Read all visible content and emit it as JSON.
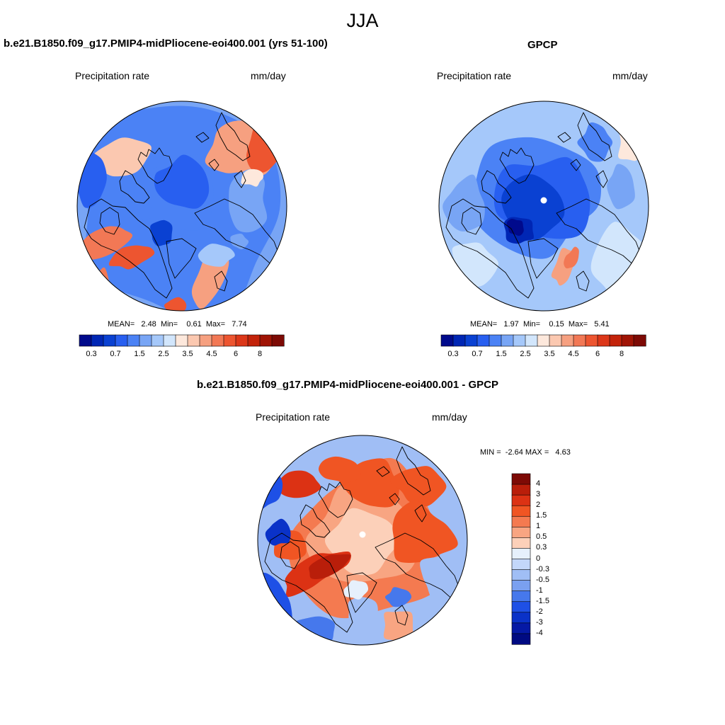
{
  "figure": {
    "season": "JJA"
  },
  "chart_data": [
    {
      "type": "heatmap",
      "title": "b.e21.B1850.f09_g17.PMIP4-midPliocene-eoi400.001 (yrs 51-100)",
      "left_label": "Precipitation rate",
      "right_label": "mm/day",
      "projection": "north polar stereographic",
      "stats": {
        "mean_label": "MEAN=",
        "mean": "2.48",
        "min_label": "Min=",
        "min": "0.61",
        "max_label": "Max=",
        "max": "7.74"
      },
      "colorbar": {
        "orientation": "horizontal",
        "levels": [
          0.2,
          0.3,
          0.5,
          0.7,
          1,
          1.5,
          2,
          2.5,
          3,
          3.5,
          4,
          4.5,
          5,
          6,
          7,
          8,
          9
        ],
        "tick_labels": [
          "0.3",
          "0.7",
          "1.5",
          "2.5",
          "3.5",
          "4.5",
          "6",
          "8"
        ]
      }
    },
    {
      "type": "heatmap",
      "title": "GPCP",
      "left_label": "Precipitation rate",
      "right_label": "mm/day",
      "projection": "north polar stereographic",
      "stats": {
        "mean_label": "MEAN=",
        "mean": "1.97",
        "min_label": "Min=",
        "min": "0.15",
        "max_label": "Max=",
        "max": "5.41"
      },
      "colorbar": {
        "orientation": "horizontal",
        "levels": [
          0.2,
          0.3,
          0.5,
          0.7,
          1,
          1.5,
          2,
          2.5,
          3,
          3.5,
          4,
          4.5,
          5,
          6,
          7,
          8,
          9
        ],
        "tick_labels": [
          "0.3",
          "0.7",
          "1.5",
          "2.5",
          "3.5",
          "4.5",
          "6",
          "8"
        ]
      }
    },
    {
      "type": "heatmap",
      "title": "b.e21.B1850.f09_g17.PMIP4-midPliocene-eoi400.001 - GPCP",
      "left_label": "Precipitation rate",
      "right_label": "mm/day",
      "projection": "north polar stereographic",
      "stats": {
        "min_label": "MIN =",
        "min": "-2.64",
        "max_label": "MAX =",
        "max": "4.63"
      },
      "colorbar": {
        "orientation": "vertical",
        "levels": [
          -4,
          -3,
          -2,
          -1.5,
          -1,
          -0.5,
          -0.3,
          0,
          0.3,
          0.5,
          1,
          1.5,
          2,
          3,
          4
        ],
        "tick_labels": [
          "4",
          "3",
          "2",
          "1.5",
          "1",
          "0.5",
          "0.3",
          "0",
          "-0.3",
          "-0.5",
          "-1",
          "-1.5",
          "-2",
          "-3",
          "-4"
        ]
      }
    }
  ],
  "colors": {
    "sequential": [
      "#000a8c",
      "#0026b4",
      "#0a41d2",
      "#285ff0",
      "#4b82f5",
      "#78a5f5",
      "#a5c8fa",
      "#d2e6fc",
      "#fde8dc",
      "#fbc8b0",
      "#f6a080",
      "#f27855",
      "#ed5530",
      "#dc3719",
      "#c3230a",
      "#a01405",
      "#7d0a05"
    ],
    "diverging": [
      "#7d0a05",
      "#b91e0a",
      "#dc3214",
      "#f05523",
      "#f47a50",
      "#f8a582",
      "#fcd0b9",
      "#e6f0fc",
      "#c3d7fa",
      "#a0bef5",
      "#7aa0f0",
      "#4678ec",
      "#1e50e6",
      "#0a32c8",
      "#0519a5",
      "#000a82"
    ],
    "land_outline": "#000000",
    "frame": "#000000"
  }
}
